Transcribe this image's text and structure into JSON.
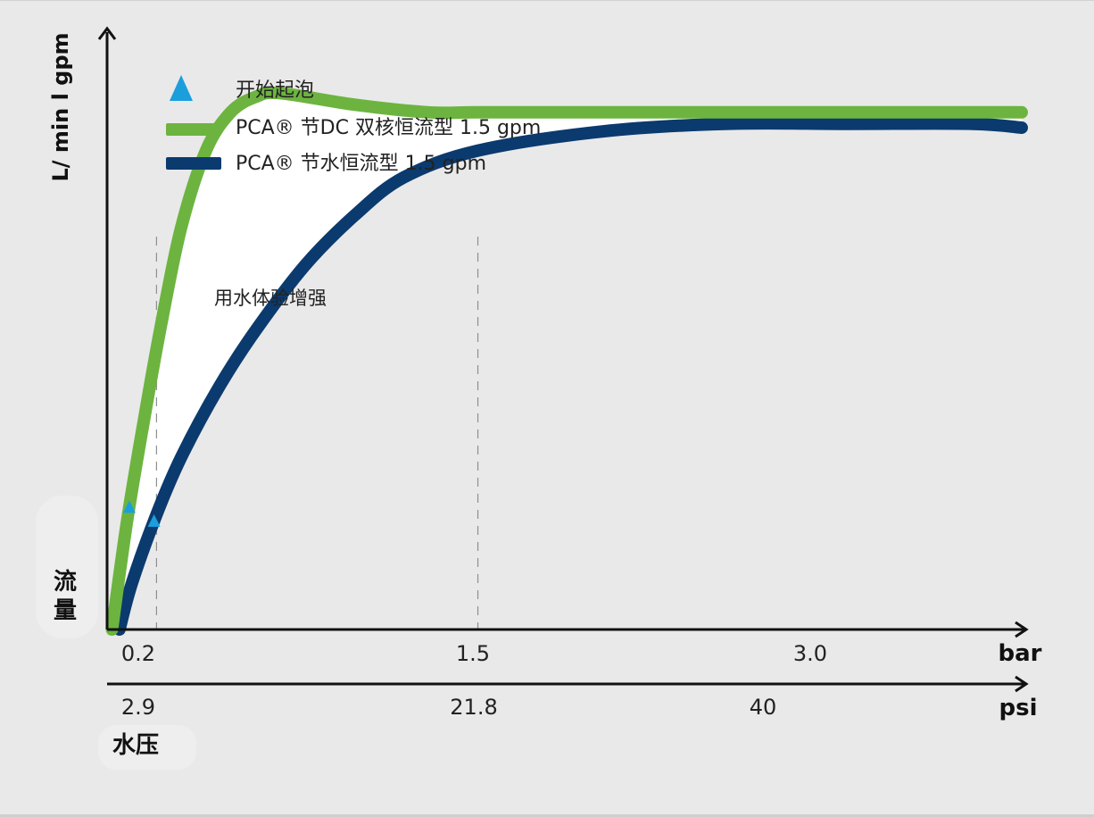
{
  "chart_data": {
    "type": "line",
    "ylabel": "L/ min l gpm",
    "ylabel_cn": "流量",
    "xlabel_unit_bar": "bar",
    "xlabel_unit_psi": "psi",
    "xlabel_cn": "水压",
    "x_ticks_bar": [
      "0.2",
      "1.5",
      "3.0"
    ],
    "x_ticks_psi": [
      "2.9",
      "21.8",
      "40"
    ],
    "annotation": "用水体验增强",
    "legend_position": "top-left",
    "legend": [
      {
        "marker": "triangle",
        "color": "#1a9fdc",
        "label": "开始起泡"
      },
      {
        "marker": "line",
        "color": "#6cb43f",
        "label": "PCA® 节DC 双核恒流型 1.5 gpm"
      },
      {
        "marker": "line",
        "color": "#0b3a6e",
        "label": "PCA® 节水恒流型 1.5 gpm"
      }
    ],
    "xlim_bar": [
      0,
      3.7
    ],
    "ylim_relative": [
      0,
      1.55
    ],
    "series": [
      {
        "label": "PCA® 节DC 双核恒流型 1.5 gpm",
        "color": "#6cb43f",
        "x_bar": [
          0.02,
          0.08,
          0.15,
          0.22,
          0.3,
          0.4,
          0.5,
          0.6,
          0.7,
          1.0,
          1.3,
          1.5,
          2.0,
          2.5,
          3.0,
          3.5,
          3.7
        ],
        "y_relative": [
          0.0,
          0.28,
          0.55,
          0.8,
          1.05,
          1.25,
          1.35,
          1.39,
          1.4,
          1.37,
          1.35,
          1.35,
          1.35,
          1.35,
          1.35,
          1.35,
          1.35
        ]
      },
      {
        "label": "PCA® 节水恒流型 1.5 gpm",
        "color": "#0b3a6e",
        "x_bar": [
          0.05,
          0.1,
          0.2,
          0.3,
          0.45,
          0.6,
          0.8,
          1.0,
          1.2,
          1.5,
          2.0,
          2.5,
          3.0,
          3.5,
          3.7
        ],
        "y_relative": [
          0.0,
          0.12,
          0.3,
          0.45,
          0.63,
          0.78,
          0.95,
          1.08,
          1.18,
          1.25,
          1.3,
          1.32,
          1.32,
          1.32,
          1.31
        ]
      }
    ],
    "foam_start_markers": [
      {
        "series": "PCA® 节DC 双核恒流型 1.5 gpm",
        "x_bar": 0.09
      },
      {
        "series": "PCA® 节水恒流型 1.5 gpm",
        "x_bar": 0.19
      }
    ],
    "grid": false
  }
}
